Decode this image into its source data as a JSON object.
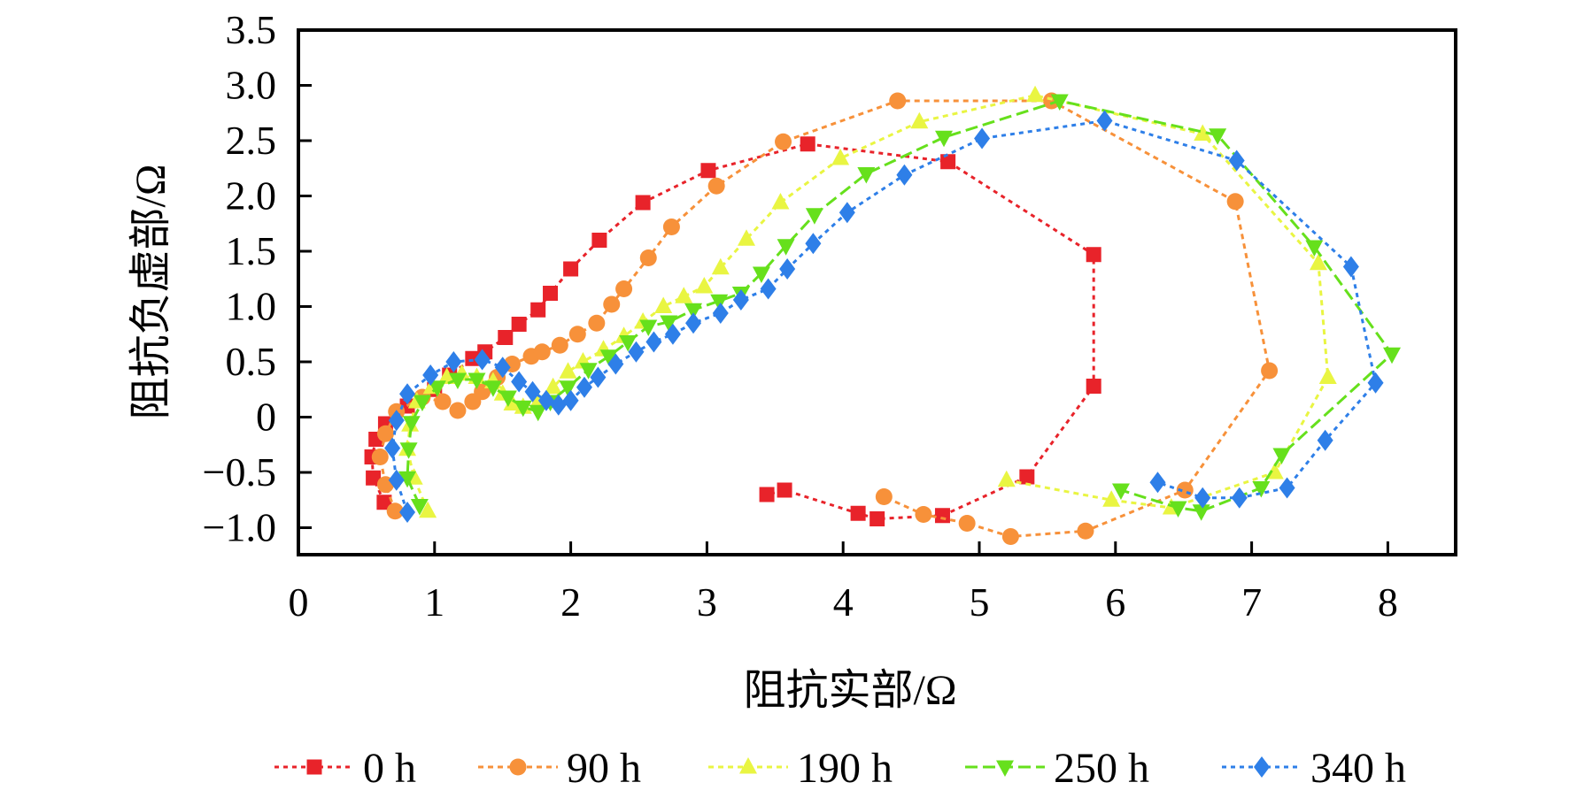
{
  "chart_data": {
    "type": "scatter",
    "title": "",
    "xlabel": "阻抗实部/Ω",
    "ylabel": "阻抗负虚部/Ω",
    "xlim": [
      0,
      8.5
    ],
    "ylim": [
      -1.25,
      3.5
    ],
    "xticks": [
      "0",
      "1",
      "2",
      "3",
      "4",
      "5",
      "6",
      "7",
      "8"
    ],
    "yticks": [
      "3.5",
      "3.0",
      "2.5",
      "2.0",
      "1.5",
      "1.0",
      "0.5",
      "0",
      "−0.5",
      "−1.0"
    ],
    "grid": false,
    "legend_position": "bottom",
    "series": [
      {
        "name": "0 h",
        "color": "#e8232a",
        "marker": "square",
        "x": [
          0.63,
          0.55,
          0.54,
          0.57,
          0.64,
          0.8,
          1.0,
          1.11,
          1.28,
          1.37,
          1.52,
          1.62,
          1.76,
          1.85,
          2.0,
          2.21,
          2.53,
          3.01,
          3.74,
          4.77,
          5.84,
          5.84,
          5.35,
          4.73,
          4.25,
          4.11,
          3.57,
          3.44
        ],
        "y": [
          -0.77,
          -0.55,
          -0.36,
          -0.2,
          -0.06,
          0.1,
          0.25,
          0.38,
          0.53,
          0.59,
          0.72,
          0.84,
          0.97,
          1.12,
          1.34,
          1.6,
          1.94,
          2.23,
          2.47,
          2.31,
          1.47,
          0.28,
          -0.54,
          -0.89,
          -0.92,
          -0.87,
          -0.66,
          -0.7
        ]
      },
      {
        "name": "90 h",
        "color": "#f7913a",
        "marker": "circle",
        "x": [
          0.71,
          0.64,
          0.6,
          0.64,
          0.72,
          0.91,
          1.06,
          1.17,
          1.28,
          1.35,
          1.46,
          1.57,
          1.71,
          1.79,
          1.92,
          2.05,
          2.19,
          2.3,
          2.39,
          2.57,
          2.74,
          3.07,
          3.56,
          4.4,
          5.53,
          6.88,
          7.13,
          6.51,
          5.78,
          5.23,
          4.91,
          4.59,
          4.3
        ],
        "y": [
          -0.85,
          -0.61,
          -0.36,
          -0.15,
          0.05,
          0.18,
          0.14,
          0.06,
          0.14,
          0.23,
          0.36,
          0.48,
          0.55,
          0.59,
          0.65,
          0.75,
          0.85,
          1.02,
          1.16,
          1.44,
          1.72,
          2.09,
          2.49,
          2.86,
          2.86,
          1.95,
          0.42,
          -0.66,
          -1.03,
          -1.08,
          -0.96,
          -0.88,
          -0.72
        ]
      },
      {
        "name": "190 h",
        "color": "#e9f542",
        "marker": "triangle-up",
        "x": [
          0.95,
          0.85,
          0.8,
          0.82,
          0.87,
          0.98,
          1.09,
          1.2,
          1.31,
          1.43,
          1.5,
          1.57,
          1.65,
          1.76,
          1.87,
          1.98,
          2.09,
          2.24,
          2.39,
          2.53,
          2.68,
          2.83,
          2.98,
          3.1,
          3.29,
          3.54,
          3.98,
          4.56,
          5.41,
          6.64,
          7.49,
          7.56,
          7.17,
          6.41,
          5.97,
          5.2
        ],
        "y": [
          -0.85,
          -0.55,
          -0.29,
          -0.07,
          0.14,
          0.27,
          0.36,
          0.39,
          0.36,
          0.32,
          0.21,
          0.12,
          0.09,
          0.14,
          0.27,
          0.41,
          0.5,
          0.61,
          0.73,
          0.86,
          1.0,
          1.09,
          1.18,
          1.35,
          1.61,
          1.94,
          2.34,
          2.67,
          2.91,
          2.56,
          1.39,
          0.36,
          -0.5,
          -0.82,
          -0.75,
          -0.57
        ]
      },
      {
        "name": "250 h",
        "color": "#66e01c",
        "marker": "triangle-down",
        "x": [
          0.89,
          0.8,
          0.81,
          0.83,
          0.91,
          1.02,
          1.17,
          1.31,
          1.43,
          1.54,
          1.65,
          1.76,
          1.85,
          1.98,
          2.13,
          2.28,
          2.42,
          2.57,
          2.72,
          2.9,
          3.09,
          3.25,
          3.4,
          3.58,
          3.79,
          4.17,
          4.74,
          5.59,
          6.75,
          7.46,
          8.03,
          7.22,
          7.07,
          6.63,
          6.46,
          6.04
        ],
        "y": [
          -0.8,
          -0.55,
          -0.29,
          -0.05,
          0.14,
          0.27,
          0.34,
          0.34,
          0.27,
          0.18,
          0.09,
          0.05,
          0.14,
          0.27,
          0.43,
          0.55,
          0.68,
          0.82,
          0.86,
          0.97,
          1.05,
          1.12,
          1.3,
          1.55,
          1.83,
          2.2,
          2.53,
          2.86,
          2.55,
          1.54,
          0.57,
          -0.34,
          -0.64,
          -0.85,
          -0.82,
          -0.66
        ]
      },
      {
        "name": "340 h",
        "color": "#2e7fe8",
        "marker": "diamond",
        "x": [
          0.8,
          0.72,
          0.69,
          0.72,
          0.8,
          0.97,
          1.14,
          1.35,
          1.5,
          1.62,
          1.72,
          1.82,
          1.91,
          2.0,
          2.1,
          2.2,
          2.33,
          2.48,
          2.61,
          2.75,
          2.9,
          3.1,
          3.25,
          3.45,
          3.59,
          3.78,
          4.03,
          4.45,
          5.02,
          5.92,
          6.89,
          7.73,
          7.91,
          7.54,
          7.26,
          6.91,
          6.64,
          6.31
        ],
        "y": [
          -0.86,
          -0.57,
          -0.28,
          -0.03,
          0.21,
          0.38,
          0.5,
          0.52,
          0.45,
          0.32,
          0.23,
          0.15,
          0.11,
          0.15,
          0.27,
          0.36,
          0.48,
          0.59,
          0.68,
          0.75,
          0.85,
          0.94,
          1.06,
          1.16,
          1.34,
          1.57,
          1.85,
          2.19,
          2.52,
          2.68,
          2.32,
          1.36,
          0.31,
          -0.21,
          -0.64,
          -0.73,
          -0.73,
          -0.59
        ]
      }
    ]
  }
}
